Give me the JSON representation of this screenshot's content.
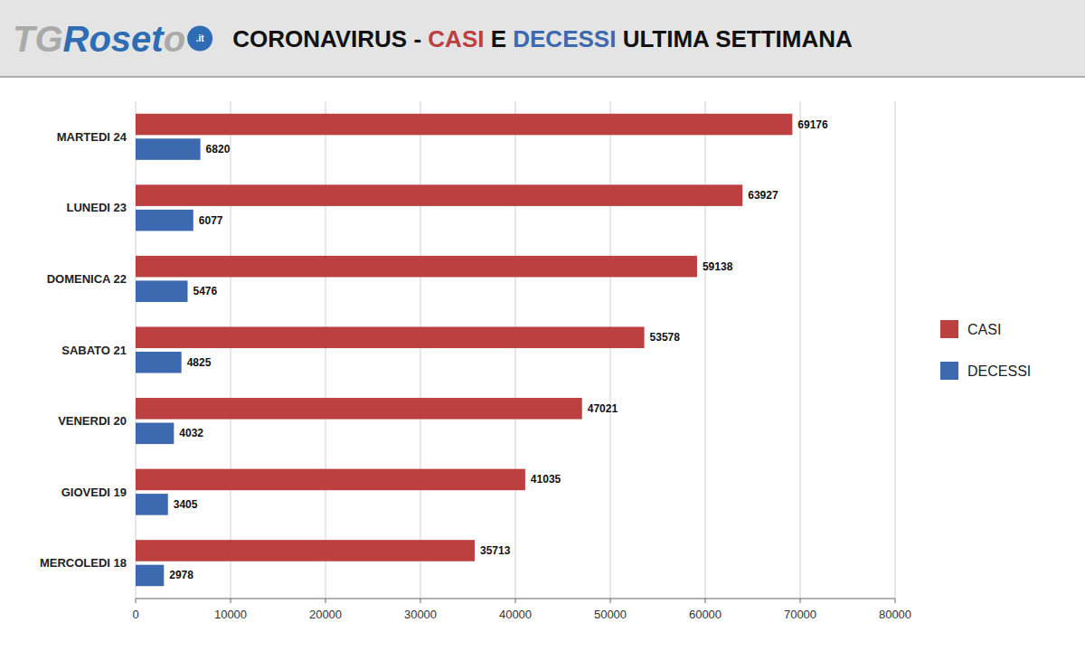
{
  "chart_data": {
    "type": "bar",
    "orientation": "horizontal",
    "title": "CORONAVIRUS - CASI E DECESSI ULTIMA SETTIMANA",
    "annotations": [
      "TG",
      "Roset",
      "o",
      ".it"
    ],
    "categories": [
      "MERCOLEDI 18",
      "GIOVEDI 19",
      "VENERDI 20",
      "SABATO 21",
      "DOMENICA 22",
      "LUNEDI 23",
      "MARTEDI 24"
    ],
    "series": [
      {
        "name": "CASI",
        "color": "#bc4040",
        "values": [
          35713,
          41035,
          47021,
          53578,
          59138,
          63927,
          69176
        ]
      },
      {
        "name": "DECESSI",
        "color": "#3c69b0",
        "values": [
          2978,
          3405,
          4032,
          4825,
          5476,
          6077,
          6820
        ]
      }
    ],
    "xlim": [
      0,
      80000
    ],
    "xticks": [
      0,
      10000,
      20000,
      30000,
      40000,
      50000,
      60000,
      70000,
      80000
    ],
    "grid": true,
    "legend": "right",
    "data_labels": true
  }
}
